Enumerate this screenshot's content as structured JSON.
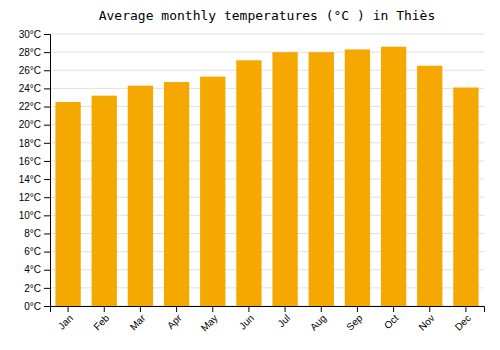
{
  "chart_data": {
    "type": "bar",
    "title": "Average monthly temperatures (°C ) in Thiès",
    "categories": [
      "Jan",
      "Feb",
      "Mar",
      "Apr",
      "May",
      "Jun",
      "Jul",
      "Aug",
      "Sep",
      "Oct",
      "Nov",
      "Dec"
    ],
    "values": [
      22.5,
      23.2,
      24.3,
      24.7,
      25.3,
      27.1,
      28.0,
      28.0,
      28.3,
      28.6,
      26.5,
      24.1
    ],
    "color": "#F5A800",
    "ylim": [
      0,
      30
    ],
    "yticks": [
      {
        "value": 0,
        "label": "0°C"
      },
      {
        "value": 2,
        "label": "2°C"
      },
      {
        "value": 4,
        "label": "4°C"
      },
      {
        "value": 6,
        "label": "6°C"
      },
      {
        "value": 8,
        "label": "8°C"
      },
      {
        "value": 10,
        "label": "10°C"
      },
      {
        "value": 12,
        "label": "12°C"
      },
      {
        "value": 14,
        "label": "14°C"
      },
      {
        "value": 16,
        "label": "16°C"
      },
      {
        "value": 18,
        "label": "18°C"
      },
      {
        "value": 20,
        "label": "20°C"
      },
      {
        "value": 22,
        "label": "22°C"
      },
      {
        "value": 24,
        "label": "24°C"
      },
      {
        "value": 26,
        "label": "26°C"
      },
      {
        "value": 28,
        "label": "28°C"
      },
      {
        "value": 30,
        "label": "30°C"
      }
    ],
    "grid": true
  }
}
